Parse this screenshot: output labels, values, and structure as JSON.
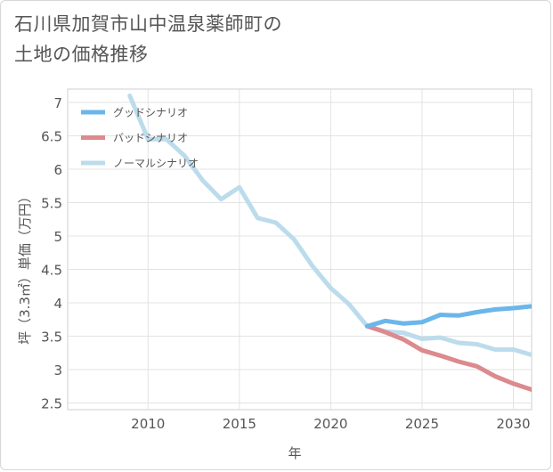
{
  "title": "石川県加賀市山中温泉薬師町の\n土地の価格推移",
  "chart_data": {
    "type": "line",
    "title": "石川県加賀市山中温泉薬師町の土地の価格推移",
    "xlabel": "年",
    "ylabel": "坪（3.3㎡）単価（万円）",
    "xlim": [
      2005.6,
      2031.0
    ],
    "ylim": [
      2.4,
      7.2
    ],
    "x_ticks": [
      2010,
      2015,
      2020,
      2025,
      2030
    ],
    "y_ticks": [
      2.5,
      3,
      3.5,
      4,
      4.5,
      5,
      5.5,
      6,
      6.5,
      7
    ],
    "y_tick_labels": [
      "2.5",
      "3",
      "3.5",
      "4",
      "4.5",
      "5",
      "5.5",
      "6",
      "6.5",
      "7"
    ],
    "grid": true,
    "legend_position": "top-left",
    "series": [
      {
        "name": "グッドシナリオ",
        "color": "#6bb6ea",
        "x": [
          2022,
          2023,
          2024,
          2025,
          2026,
          2027,
          2028,
          2029,
          2030,
          2031
        ],
        "values": [
          3.65,
          3.73,
          3.69,
          3.71,
          3.82,
          3.81,
          3.86,
          3.9,
          3.92,
          3.95
        ]
      },
      {
        "name": "バッドシナリオ",
        "color": "#dc8a8e",
        "x": [
          2022,
          2023,
          2024,
          2025,
          2026,
          2027,
          2028,
          2029,
          2030,
          2031
        ],
        "values": [
          3.65,
          3.56,
          3.45,
          3.29,
          3.21,
          3.12,
          3.05,
          2.9,
          2.79,
          2.7
        ]
      },
      {
        "name": "ノーマルシナリオ",
        "color": "#bcdcec",
        "x": [
          2009,
          2010,
          2011,
          2012,
          2013,
          2014,
          2015,
          2016,
          2017,
          2018,
          2019,
          2020,
          2021,
          2022,
          2023,
          2024,
          2025,
          2026,
          2027,
          2028,
          2029,
          2030,
          2031
        ],
        "values": [
          7.1,
          6.45,
          6.45,
          6.2,
          5.83,
          5.55,
          5.73,
          5.27,
          5.2,
          4.95,
          4.55,
          4.22,
          3.98,
          3.65,
          3.57,
          3.55,
          3.46,
          3.48,
          3.4,
          3.38,
          3.3,
          3.3,
          3.22
        ]
      }
    ]
  }
}
